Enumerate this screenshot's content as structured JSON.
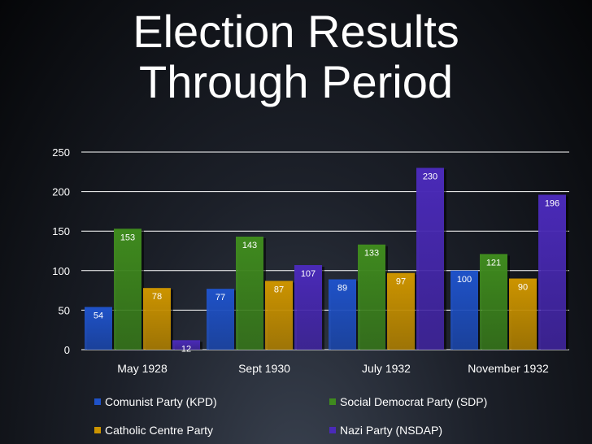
{
  "title_line1": "Election Results",
  "title_line2": "Through Period",
  "chart_data": {
    "type": "bar",
    "title": "Election Results Through Period",
    "categories": [
      "May 1928",
      "Sept 1930",
      "July 1932",
      "November 1932"
    ],
    "series": [
      {
        "name": "Comunist Party (KPD)",
        "color": "#1f52c8",
        "values": [
          54,
          77,
          89,
          100
        ]
      },
      {
        "name": "Social Democrat Party (SDP)",
        "color": "#3f8a1e",
        "values": [
          153,
          143,
          133,
          121
        ]
      },
      {
        "name": "Catholic Centre Party",
        "color": "#cc9400",
        "values": [
          78,
          87,
          97,
          90
        ]
      },
      {
        "name": "Nazi Party (NSDAP)",
        "color": "#4a2ab8",
        "values": [
          12,
          107,
          230,
          196
        ]
      }
    ],
    "ylim": [
      0,
      250
    ],
    "yticks": [
      0,
      50,
      100,
      150,
      200,
      250
    ],
    "grid": true,
    "data_labels": true,
    "legend_position": "bottom"
  }
}
